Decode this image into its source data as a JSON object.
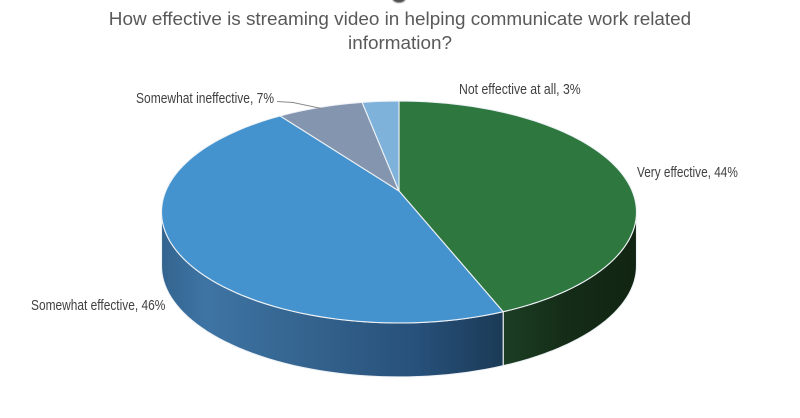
{
  "title": "How effective is streaming video in helping communicate work related information?",
  "chart_data": {
    "type": "pie",
    "pie_style": "3d",
    "title": "How effective is streaming video in helping communicate work related information?",
    "start_angle_deg": 0,
    "direction": "clockwise",
    "legend": "none",
    "labels_style": "outside, category name and percentage",
    "categories": [
      "Very effective",
      "Somewhat effective",
      "Somewhat ineffective",
      "Not effective at all"
    ],
    "values": [
      44,
      46,
      7,
      3
    ],
    "unit": "%",
    "slices": [
      {
        "label": "Very effective",
        "value": 44,
        "color": "#2e7840",
        "side_color": "#152d18"
      },
      {
        "label": "Somewhat effective",
        "value": 46,
        "color": "#4493cf",
        "side_color": "#2e5d85"
      },
      {
        "label": "Somewhat ineffective",
        "value": 7,
        "color": "#8496af"
      },
      {
        "label": "Not effective at all",
        "value": 3,
        "color": "#7fb2db"
      }
    ],
    "colors": {
      "title_text": "#595959",
      "label_text": "#404040",
      "slice_border": "#eef2f6",
      "leader_line": "#8a8a8a"
    }
  }
}
